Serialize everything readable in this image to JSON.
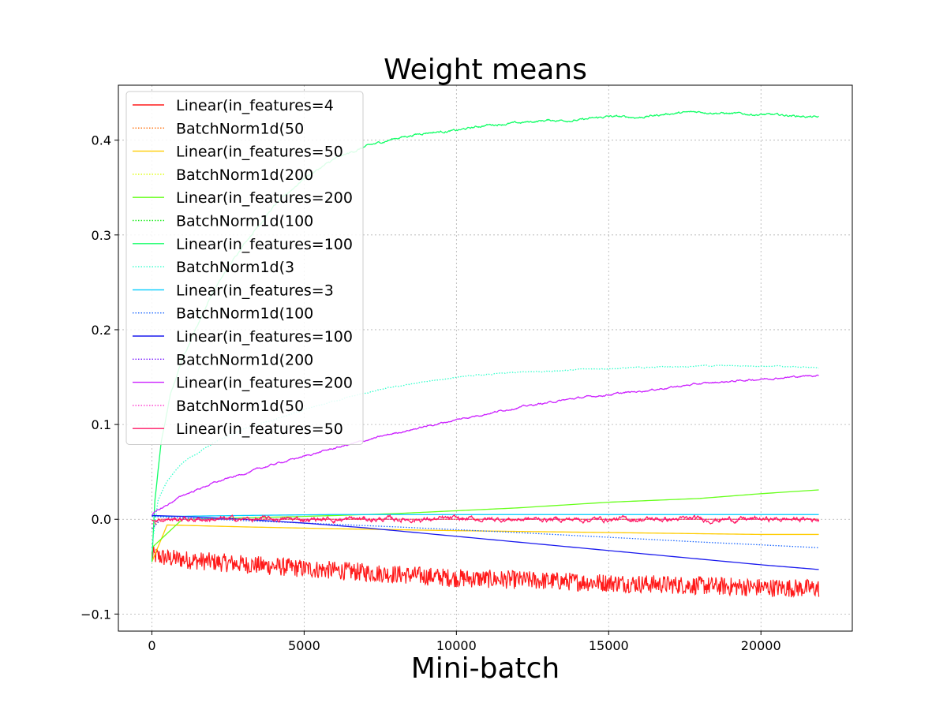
{
  "chart_data": {
    "type": "line",
    "title": "Weight means",
    "xlabel": "Mini-batch",
    "ylabel": "",
    "xlim": [
      -1100,
      23000
    ],
    "ylim": [
      -0.118,
      0.458
    ],
    "xticks": [
      0,
      5000,
      10000,
      15000,
      20000
    ],
    "xtick_labels": [
      "0",
      "5000",
      "10000",
      "15000",
      "20000"
    ],
    "yticks": [
      -0.1,
      0.0,
      0.1,
      0.2,
      0.3,
      0.4
    ],
    "ytick_labels": [
      "−0.1",
      "0.0",
      "0.1",
      "0.2",
      "0.3",
      "0.4"
    ],
    "grid": true,
    "legend_position": "upper-left",
    "series": [
      {
        "name": "Linear(in_features=4",
        "color": "#ff1a1a",
        "style": "solid",
        "noise": 0.007,
        "x": [
          0,
          500,
          2000,
          5000,
          8000,
          10000,
          12000,
          15000,
          18000,
          20000,
          21900
        ],
        "values": [
          -0.038,
          -0.041,
          -0.045,
          -0.052,
          -0.058,
          -0.062,
          -0.064,
          -0.067,
          -0.07,
          -0.072,
          -0.073
        ]
      },
      {
        "name": "BatchNorm1d(50",
        "color": "#ff6a00",
        "style": "dotted",
        "noise": 0.0,
        "x": [
          0,
          200,
          21900
        ],
        "values": [
          -0.01,
          0.0,
          0.0
        ]
      },
      {
        "name": "Linear(in_features=50",
        "color": "#ffcc00",
        "style": "solid",
        "noise": 0.0,
        "x": [
          0,
          500,
          3000,
          6000,
          10000,
          15000,
          20000,
          21900
        ],
        "values": [
          -0.045,
          -0.006,
          -0.008,
          -0.01,
          -0.012,
          -0.014,
          -0.016,
          -0.016
        ]
      },
      {
        "name": "BatchNorm1d(200",
        "color": "#ddff00",
        "style": "dotted",
        "noise": 0.0,
        "x": [
          0,
          300,
          21900
        ],
        "values": [
          -0.01,
          0.0,
          0.0
        ]
      },
      {
        "name": "Linear(in_features=200",
        "color": "#66ff1a",
        "style": "solid",
        "noise": 0.0,
        "x": [
          0,
          1000,
          5000,
          8000,
          10000,
          12000,
          15000,
          18000,
          20000,
          21900
        ],
        "values": [
          -0.03,
          0.0,
          0.003,
          0.006,
          0.009,
          0.012,
          0.018,
          0.022,
          0.027,
          0.031
        ]
      },
      {
        "name": "BatchNorm1d(100",
        "color": "#22ee22",
        "style": "dotted",
        "noise": 0.0,
        "x": [
          0,
          300,
          21900
        ],
        "values": [
          -0.01,
          0.0,
          0.0
        ]
      },
      {
        "name": "Linear(in_features=100",
        "color": "#11ff66",
        "style": "solid",
        "noise": 0.0015,
        "x": [
          0,
          100,
          300,
          600,
          1000,
          2000,
          3000,
          4000,
          5000,
          6000,
          7000,
          8000,
          9000,
          10000,
          11000,
          12000,
          13000,
          14000,
          15000,
          16000,
          17000,
          18000,
          19000,
          20000,
          21000,
          21900
        ],
        "values": [
          -0.045,
          0.02,
          0.08,
          0.13,
          0.17,
          0.24,
          0.29,
          0.33,
          0.36,
          0.38,
          0.393,
          0.402,
          0.408,
          0.41,
          0.416,
          0.418,
          0.421,
          0.421,
          0.425,
          0.424,
          0.428,
          0.43,
          0.428,
          0.427,
          0.426,
          0.424
        ]
      },
      {
        "name": "BatchNorm1d(3",
        "color": "#33ffcc",
        "style": "dotted",
        "noise": 0.0008,
        "x": [
          0,
          200,
          500,
          1000,
          2000,
          3000,
          4000,
          5000,
          6000,
          7000,
          8000,
          10000,
          12000,
          14000,
          16000,
          18000,
          20000,
          21900
        ],
        "values": [
          -0.03,
          0.02,
          0.04,
          0.06,
          0.08,
          0.095,
          0.105,
          0.115,
          0.125,
          0.133,
          0.14,
          0.15,
          0.155,
          0.158,
          0.16,
          0.162,
          0.162,
          0.16
        ]
      },
      {
        "name": "Linear(in_features=3",
        "color": "#00ccff",
        "style": "solid",
        "noise": 0.0,
        "x": [
          0,
          500,
          3000,
          6000,
          10000,
          15000,
          20000,
          21900
        ],
        "values": [
          0.004,
          0.003,
          0.004,
          0.005,
          0.005,
          0.005,
          0.005,
          0.005
        ]
      },
      {
        "name": "BatchNorm1d(100",
        "color": "#1a66ff",
        "style": "dotted",
        "noise": 0.0,
        "x": [
          0,
          2000,
          5000,
          8000,
          10000,
          12000,
          15000,
          18000,
          20000,
          21900
        ],
        "values": [
          0.003,
          0.0,
          -0.004,
          -0.008,
          -0.011,
          -0.014,
          -0.019,
          -0.024,
          -0.027,
          -0.03
        ]
      },
      {
        "name": "Linear(in_features=100",
        "color": "#1a1aee",
        "style": "solid",
        "noise": 0.0,
        "x": [
          0,
          1000,
          3000,
          5000,
          7000,
          10000,
          12000,
          15000,
          18000,
          20000,
          21900
        ],
        "values": [
          0.004,
          0.003,
          0.0,
          -0.004,
          -0.009,
          -0.018,
          -0.024,
          -0.033,
          -0.042,
          -0.048,
          -0.053
        ]
      },
      {
        "name": "BatchNorm1d(200",
        "color": "#7a1aff",
        "style": "dotted",
        "noise": 0.0,
        "x": [
          0,
          300,
          21900
        ],
        "values": [
          -0.01,
          0.0,
          0.0
        ]
      },
      {
        "name": "Linear(in_features=200",
        "color": "#cc22ff",
        "style": "solid",
        "noise": 0.0012,
        "x": [
          0,
          1000,
          2000,
          4000,
          6000,
          8000,
          10000,
          12000,
          14000,
          16000,
          18000,
          20000,
          21900
        ],
        "values": [
          0.005,
          0.025,
          0.038,
          0.058,
          0.075,
          0.091,
          0.105,
          0.118,
          0.128,
          0.135,
          0.143,
          0.148,
          0.152
        ]
      },
      {
        "name": "BatchNorm1d(50",
        "color": "#ff33cc",
        "style": "dotted",
        "noise": 0.0,
        "x": [
          0,
          300,
          21900
        ],
        "values": [
          -0.005,
          0.0,
          0.0
        ]
      },
      {
        "name": "Linear(in_features=50",
        "color": "#ff1a66",
        "style": "solid",
        "noise": 0.0035,
        "x": [
          0,
          300,
          21900
        ],
        "values": [
          0.0,
          0.0,
          0.0
        ]
      }
    ]
  }
}
